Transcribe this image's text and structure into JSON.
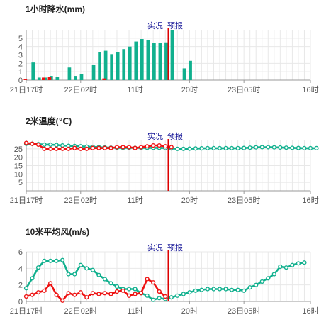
{
  "colors": {
    "observed": "#ee1111",
    "forecast": "#11b08e",
    "divider": "#dd0000",
    "annotation": "#1a1a99"
  },
  "chart_data": [
    {
      "type": "bar",
      "title": "1小时降水(mm)",
      "annotation_observed": "实况",
      "annotation_forecast": "预报",
      "ylim": [
        0,
        6
      ],
      "yticks": [
        0,
        1,
        2,
        3,
        4,
        5
      ],
      "xticks": [
        {
          "i": 0,
          "label": "21日17时"
        },
        {
          "i": 9,
          "label": "22日02时"
        },
        {
          "i": 18,
          "label": "11时"
        },
        {
          "i": 27,
          "label": "20时"
        },
        {
          "i": 36,
          "label": "23日05时"
        },
        {
          "i": 47,
          "label": "16时"
        }
      ],
      "divider_index": 23,
      "series": [
        {
          "role": "observed",
          "values": [
            0.1,
            0,
            0,
            0.3,
            0.4,
            0,
            0,
            0,
            0,
            0,
            0,
            0,
            0,
            0.2,
            0,
            0,
            0,
            0,
            0,
            0,
            0,
            0,
            0,
            0,
            0,
            0,
            0
          ]
        },
        {
          "role": "forecast",
          "values": [
            0,
            2.1,
            0.3,
            0.3,
            0.5,
            0.4,
            0,
            1.5,
            0.5,
            0.7,
            0,
            1.8,
            3.3,
            3.5,
            3.1,
            3.3,
            3.7,
            4.0,
            4.6,
            4.9,
            4.8,
            4.4,
            4.4,
            4.5,
            6.0,
            0,
            1.4,
            2.3
          ]
        }
      ]
    },
    {
      "type": "line",
      "title": "2米温度(℃)",
      "annotation_observed": "实况",
      "annotation_forecast": "预报",
      "ylim": [
        0,
        30
      ],
      "yticks": [
        5,
        10,
        15,
        20,
        25
      ],
      "xticks": [
        {
          "i": 0,
          "label": "21日17时"
        },
        {
          "i": 9,
          "label": "22日02时"
        },
        {
          "i": 18,
          "label": "11时"
        },
        {
          "i": 27,
          "label": "20时"
        },
        {
          "i": 36,
          "label": "23日05时"
        },
        {
          "i": 47,
          "label": "16时"
        }
      ],
      "divider_index": 23,
      "series": [
        {
          "role": "observed",
          "values": [
            28.5,
            28,
            27.5,
            25,
            25,
            25,
            25,
            25,
            25.5,
            25,
            25,
            25.5,
            25.5,
            25.5,
            25.5,
            26,
            26,
            26,
            25.5,
            26,
            26.5,
            27,
            27,
            26.5,
            26
          ]
        },
        {
          "role": "forecast",
          "values": [
            28,
            28,
            27.8,
            27.5,
            27.5,
            27.3,
            27,
            26.8,
            26.7,
            26.5,
            26.3,
            26.2,
            26,
            25.8,
            25.7,
            25.6,
            25.6,
            25.6,
            25.6,
            25.6,
            25.6,
            25.6,
            25.6,
            25.5,
            25.3,
            25,
            25,
            25.1,
            25.2,
            25.3,
            25.4,
            25.4,
            25.4,
            25.4,
            25.4,
            25.4,
            25.5,
            25.7,
            25.9,
            26,
            26,
            25.9,
            25.8,
            25.7,
            25.6,
            25.5,
            25.4,
            25.4,
            25.4
          ]
        }
      ]
    },
    {
      "type": "line",
      "title": "10米平均风(m/s)",
      "annotation_observed": "实况",
      "annotation_forecast": "预报",
      "ylim": [
        0,
        6
      ],
      "yticks": [
        0,
        2,
        4,
        6
      ],
      "xticks": [
        {
          "i": 0,
          "label": "21日17时"
        },
        {
          "i": 9,
          "label": "22日02时"
        },
        {
          "i": 18,
          "label": "11时"
        },
        {
          "i": 27,
          "label": "20时"
        },
        {
          "i": 36,
          "label": "23日05时"
        },
        {
          "i": 47,
          "label": "16时"
        }
      ],
      "divider_index": 23,
      "series": [
        {
          "role": "observed",
          "values": [
            0.6,
            0.8,
            1.1,
            1.3,
            2.2,
            0.8,
            0.1,
            1.0,
            0.8,
            1.1,
            0.5,
            1.0,
            0.9,
            1.0,
            0.9,
            1.2,
            1.3,
            0.7,
            0.9,
            1.0,
            2.7,
            2.3,
            1.2,
            0.6
          ]
        },
        {
          "role": "forecast",
          "values": [
            1.6,
            2.8,
            4.1,
            4.9,
            4.9,
            4.9,
            5.0,
            3.3,
            3.3,
            4.4,
            4.0,
            3.8,
            3.2,
            2.7,
            2.2,
            1.8,
            1.5,
            1.5,
            1.5,
            1.0,
            0.7,
            0.2,
            0.4,
            0.3,
            0.5,
            0.7,
            0.9,
            1.1,
            1.3,
            1.4,
            1.5,
            1.5,
            1.5,
            1.5,
            1.4,
            1.4,
            1.3,
            1.7,
            2.0,
            2.4,
            2.8,
            3.3,
            4.2,
            4.1,
            4.4,
            4.6,
            4.7
          ]
        }
      ]
    }
  ]
}
